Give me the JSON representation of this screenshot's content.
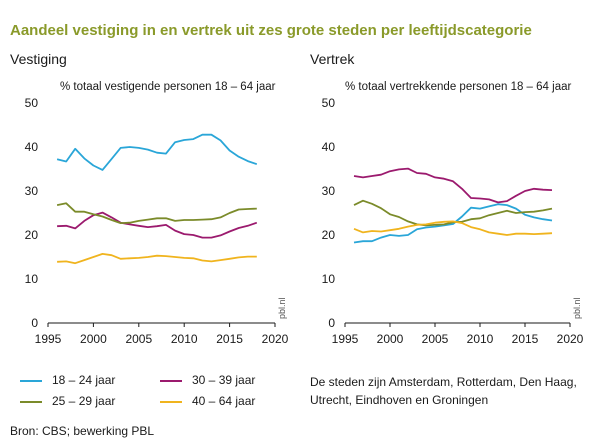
{
  "title": "Aandeel vestiging in en vertrek uit zes grote steden per leeftijdscategorie",
  "source": "Bron: CBS; bewerking PBL",
  "note": "De steden zijn Amsterdam, Rotterdam, Den Haag, Utrecht, Eindhoven en Groningen",
  "watermark": "pbl.nl",
  "colors": {
    "title": "#8a9a2a",
    "18-24": "#2aa6d8",
    "25-29": "#7b8b2a",
    "30-39": "#9b1a6e",
    "40-64": "#f0b41e",
    "axis": "#1a1a1a"
  },
  "legend": [
    {
      "key": "18-24",
      "label": "18 – 24 jaar"
    },
    {
      "key": "30-39",
      "label": "30 – 39 jaar"
    },
    {
      "key": "25-29",
      "label": "25 – 29 jaar"
    },
    {
      "key": "40-64",
      "label": "40 – 64 jaar"
    }
  ],
  "chart_data": [
    {
      "type": "line",
      "panel_title": "Vestiging",
      "ylabel": "% totaal vestigende personen 18 – 64 jaar",
      "xlim": [
        1995,
        2020
      ],
      "ylim": [
        0,
        50
      ],
      "xticks": [
        1995,
        2000,
        2005,
        2010,
        2015,
        2020
      ],
      "yticks": [
        0,
        10,
        20,
        30,
        40,
        50
      ],
      "x": [
        1996,
        1997,
        1998,
        1999,
        2000,
        2001,
        2002,
        2003,
        2004,
        2005,
        2006,
        2007,
        2008,
        2009,
        2010,
        2011,
        2012,
        2013,
        2014,
        2015,
        2016,
        2017,
        2018
      ],
      "series": [
        {
          "key": "18-24",
          "name": "18 – 24 jaar",
          "values": [
            37.2,
            36.7,
            39.6,
            37.4,
            35.8,
            34.8,
            37.3,
            39.8,
            40.0,
            39.8,
            39.4,
            38.7,
            38.5,
            41.1,
            41.6,
            41.8,
            42.8,
            42.8,
            41.5,
            39.2,
            37.8,
            36.8,
            36.1
          ]
        },
        {
          "key": "30-39",
          "name": "30 – 39 jaar",
          "values": [
            22.0,
            22.1,
            21.5,
            23.2,
            24.5,
            25.1,
            24.0,
            22.8,
            22.4,
            22.1,
            21.8,
            22.0,
            22.3,
            21.0,
            20.2,
            20.0,
            19.4,
            19.4,
            19.9,
            20.8,
            21.6,
            22.1,
            22.8
          ]
        },
        {
          "key": "25-29",
          "name": "25 – 29 jaar",
          "values": [
            26.8,
            27.2,
            25.3,
            25.3,
            24.7,
            24.2,
            23.4,
            22.7,
            22.8,
            23.2,
            23.5,
            23.8,
            23.8,
            23.2,
            23.4,
            23.4,
            23.5,
            23.6,
            24.0,
            25.0,
            25.8,
            25.9,
            26.0
          ]
        },
        {
          "key": "40-64",
          "name": "40 – 64 jaar",
          "values": [
            13.9,
            14.0,
            13.6,
            14.3,
            15.0,
            15.7,
            15.4,
            14.6,
            14.7,
            14.8,
            15.0,
            15.3,
            15.2,
            15.0,
            14.8,
            14.7,
            14.2,
            14.0,
            14.3,
            14.6,
            14.9,
            15.1,
            15.1
          ]
        }
      ]
    },
    {
      "type": "line",
      "panel_title": "Vertrek",
      "ylabel": "% totaal vertrekkende personen 18 – 64 jaar",
      "xlim": [
        1995,
        2020
      ],
      "ylim": [
        0,
        50
      ],
      "xticks": [
        1995,
        2000,
        2005,
        2010,
        2015,
        2020
      ],
      "yticks": [
        0,
        10,
        20,
        30,
        40,
        50
      ],
      "x": [
        1996,
        1997,
        1998,
        1999,
        2000,
        2001,
        2002,
        2003,
        2004,
        2005,
        2006,
        2007,
        2008,
        2009,
        2010,
        2011,
        2012,
        2013,
        2014,
        2015,
        2016,
        2017,
        2018
      ],
      "series": [
        {
          "key": "18-24",
          "name": "18 – 24 jaar",
          "values": [
            18.3,
            18.6,
            18.6,
            19.4,
            20.0,
            19.8,
            20.0,
            21.3,
            21.7,
            21.9,
            22.2,
            22.5,
            24.2,
            26.2,
            26.0,
            26.5,
            27.0,
            26.8,
            26.0,
            24.6,
            24.0,
            23.6,
            23.3
          ]
        },
        {
          "key": "30-39",
          "name": "30 – 39 jaar",
          "values": [
            33.4,
            33.1,
            33.4,
            33.7,
            34.5,
            34.9,
            35.1,
            34.1,
            33.9,
            33.1,
            32.8,
            32.2,
            30.5,
            28.4,
            28.3,
            28.1,
            27.4,
            27.7,
            28.9,
            30.0,
            30.5,
            30.3,
            30.2
          ]
        },
        {
          "key": "25-29",
          "name": "25 – 29 jaar",
          "values": [
            26.8,
            27.8,
            27.1,
            26.1,
            24.7,
            24.1,
            23.1,
            22.4,
            22.2,
            22.3,
            22.4,
            22.9,
            23.0,
            23.6,
            23.8,
            24.5,
            25.0,
            25.5,
            25.0,
            25.2,
            25.3,
            25.6,
            26.0
          ]
        },
        {
          "key": "40-64",
          "name": "40 – 64 jaar",
          "values": [
            21.4,
            20.6,
            20.9,
            20.8,
            21.1,
            21.4,
            21.9,
            22.3,
            22.4,
            22.8,
            23.0,
            23.1,
            22.7,
            21.8,
            21.3,
            20.6,
            20.3,
            20.0,
            20.3,
            20.3,
            20.2,
            20.3,
            20.4
          ]
        }
      ]
    }
  ]
}
